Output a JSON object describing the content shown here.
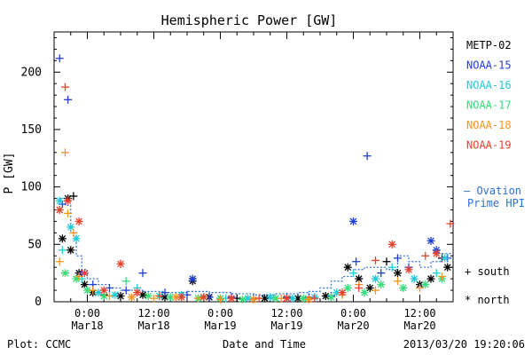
{
  "chart_data": {
    "type": "scatter",
    "title": "Hemispheric Power [GW]",
    "ylabel": "P [GW]",
    "xlabel": "Date and Time",
    "ylim": [
      0,
      235
    ],
    "xlim_hours": [
      -6,
      66
    ],
    "x_ticks": [
      {
        "hour": 0,
        "line1": "0:00",
        "line2": "Mar18"
      },
      {
        "hour": 12,
        "line1": "12:00",
        "line2": "Mar18"
      },
      {
        "hour": 24,
        "line1": "0:00",
        "line2": "Mar19"
      },
      {
        "hour": 36,
        "line1": "12:00",
        "line2": "Mar19"
      },
      {
        "hour": 48,
        "line1": "0:00",
        "line2": "Mar20"
      },
      {
        "hour": 60,
        "line1": "12:00",
        "line2": "Mar20"
      }
    ],
    "y_ticks": [
      "0",
      "50",
      "100",
      "150",
      "200"
    ],
    "y_tick_values": [
      0,
      50,
      100,
      150,
      200
    ],
    "footer_left": "Plot: CCMC",
    "footer_right": "2013/03/20 19:20:06",
    "legend": {
      "satellites": [
        {
          "name": "METP-02",
          "color": "#000000"
        },
        {
          "name": "NOAA-15",
          "color": "#1f3fd6"
        },
        {
          "name": "NOAA-16",
          "color": "#22c8d8"
        },
        {
          "name": "NOAA-17",
          "color": "#33dd77"
        },
        {
          "name": "NOAA-18",
          "color": "#f7941d"
        },
        {
          "name": "NOAA-19",
          "color": "#e8402a"
        }
      ],
      "ovation_label_1": "— Ovation",
      "ovation_label_2": "Prime HPI",
      "ovation_color": "#2a6fd6",
      "south_label": "+ south",
      "north_label": "* north"
    },
    "series": [
      {
        "name": "METP-02",
        "color": "#000000",
        "points": [
          [
            -4.5,
            55,
            "n"
          ],
          [
            -3.5,
            90,
            "n"
          ],
          [
            -3.0,
            45,
            "n"
          ],
          [
            -2.5,
            92,
            "s"
          ],
          [
            -1.5,
            25,
            "n"
          ],
          [
            -0.5,
            15,
            "n"
          ],
          [
            1,
            8,
            "n"
          ],
          [
            3,
            6,
            "s"
          ],
          [
            6,
            5,
            "n"
          ],
          [
            10,
            6,
            "n"
          ],
          [
            14,
            4,
            "n"
          ],
          [
            19,
            18,
            "n"
          ],
          [
            22,
            4,
            "n"
          ],
          [
            27,
            3,
            "s"
          ],
          [
            32,
            3,
            "n"
          ],
          [
            38,
            3,
            "n"
          ],
          [
            43,
            5,
            "n"
          ],
          [
            47,
            30,
            "n"
          ],
          [
            49,
            20,
            "n"
          ],
          [
            51,
            12,
            "n"
          ],
          [
            54,
            35,
            "s"
          ],
          [
            56,
            25,
            "n"
          ],
          [
            60,
            15,
            "n"
          ],
          [
            62,
            20,
            "n"
          ],
          [
            64,
            38,
            "s"
          ],
          [
            65,
            30,
            "n"
          ]
        ]
      },
      {
        "name": "NOAA-15",
        "color": "#1f3fd6",
        "points": [
          [
            -5.0,
            212,
            "s"
          ],
          [
            -3.5,
            176,
            "s"
          ],
          [
            -4.5,
            85,
            "s"
          ],
          [
            -1.0,
            25,
            "s"
          ],
          [
            1,
            15,
            "s"
          ],
          [
            4,
            12,
            "s"
          ],
          [
            7,
            10,
            "s"
          ],
          [
            10,
            25,
            "s"
          ],
          [
            14,
            8,
            "s"
          ],
          [
            18,
            6,
            "s"
          ],
          [
            19,
            20,
            "n"
          ],
          [
            22,
            4,
            "s"
          ],
          [
            26,
            4,
            "s"
          ],
          [
            30,
            3,
            "s"
          ],
          [
            36,
            4,
            "s"
          ],
          [
            40,
            4,
            "s"
          ],
          [
            44,
            5,
            "s"
          ],
          [
            48,
            70,
            "n"
          ],
          [
            48.5,
            35,
            "s"
          ],
          [
            50.5,
            127,
            "s"
          ],
          [
            53,
            25,
            "s"
          ],
          [
            56,
            38,
            "s"
          ],
          [
            58,
            30,
            "s"
          ],
          [
            62,
            53,
            "n"
          ],
          [
            63,
            45,
            "n"
          ],
          [
            65,
            38,
            "s"
          ]
        ]
      },
      {
        "name": "NOAA-16",
        "color": "#22c8d8",
        "points": [
          [
            -5.0,
            88,
            "n"
          ],
          [
            -4.5,
            45,
            "s"
          ],
          [
            -3.0,
            65,
            "n"
          ],
          [
            -2.0,
            55,
            "n"
          ],
          [
            -1.0,
            20,
            "s"
          ],
          [
            2,
            8,
            "n"
          ],
          [
            5,
            6,
            "n"
          ],
          [
            9,
            12,
            "s"
          ],
          [
            13,
            5,
            "n"
          ],
          [
            17,
            6,
            "n"
          ],
          [
            21,
            4,
            "n"
          ],
          [
            25,
            3,
            "s"
          ],
          [
            29,
            3,
            "n"
          ],
          [
            33,
            4,
            "n"
          ],
          [
            37,
            3,
            "n"
          ],
          [
            41,
            4,
            "n"
          ],
          [
            45,
            8,
            "n"
          ],
          [
            48,
            25,
            "s"
          ],
          [
            52,
            20,
            "n"
          ],
          [
            55,
            30,
            "s"
          ],
          [
            59,
            20,
            "n"
          ],
          [
            63,
            25,
            "s"
          ],
          [
            64.5,
            38,
            "n"
          ]
        ]
      },
      {
        "name": "NOAA-17",
        "color": "#33dd77",
        "points": [
          [
            -4.0,
            25,
            "n"
          ],
          [
            -2.0,
            20,
            "n"
          ],
          [
            0,
            10,
            "n"
          ],
          [
            3,
            5,
            "n"
          ],
          [
            7,
            18,
            "s"
          ],
          [
            11,
            5,
            "n"
          ],
          [
            15,
            4,
            "n"
          ],
          [
            20,
            3,
            "n"
          ],
          [
            24,
            3,
            "n"
          ],
          [
            28,
            2,
            "n"
          ],
          [
            34,
            3,
            "n"
          ],
          [
            39,
            3,
            "n"
          ],
          [
            44,
            4,
            "n"
          ],
          [
            47,
            12,
            "n"
          ],
          [
            50,
            8,
            "n"
          ],
          [
            53,
            15,
            "n"
          ],
          [
            57,
            12,
            "n"
          ],
          [
            61,
            15,
            "n"
          ],
          [
            64,
            20,
            "n"
          ]
        ]
      },
      {
        "name": "NOAA-18",
        "color": "#f7941d",
        "points": [
          [
            -5.0,
            35,
            "s"
          ],
          [
            -4.0,
            130,
            "s"
          ],
          [
            -3.5,
            77,
            "s"
          ],
          [
            -2.5,
            60,
            "s"
          ],
          [
            -1.5,
            22,
            "s"
          ],
          [
            1,
            10,
            "s"
          ],
          [
            4,
            5,
            "s"
          ],
          [
            8,
            4,
            "n"
          ],
          [
            12,
            3,
            "s"
          ],
          [
            16,
            4,
            "n"
          ],
          [
            20,
            3,
            "s"
          ],
          [
            24,
            2,
            "s"
          ],
          [
            30,
            2,
            "n"
          ],
          [
            35,
            3,
            "s"
          ],
          [
            40,
            2,
            "n"
          ],
          [
            46,
            6,
            "s"
          ],
          [
            49,
            15,
            "s"
          ],
          [
            52,
            10,
            "s"
          ],
          [
            56,
            18,
            "s"
          ],
          [
            60,
            12,
            "s"
          ],
          [
            64,
            22,
            "s"
          ]
        ]
      },
      {
        "name": "NOAA-19",
        "color": "#e8402a",
        "points": [
          [
            -5.0,
            80,
            "n"
          ],
          [
            -4.0,
            187,
            "s"
          ],
          [
            -3.5,
            88,
            "n"
          ],
          [
            -1.5,
            70,
            "n"
          ],
          [
            -0.5,
            25,
            "n"
          ],
          [
            3,
            10,
            "n"
          ],
          [
            6,
            33,
            "n"
          ],
          [
            9,
            8,
            "n"
          ],
          [
            13,
            5,
            "s"
          ],
          [
            17,
            4,
            "n"
          ],
          [
            21,
            4,
            "n"
          ],
          [
            26,
            3,
            "n"
          ],
          [
            31,
            3,
            "s"
          ],
          [
            36,
            3,
            "n"
          ],
          [
            41,
            3,
            "s"
          ],
          [
            46,
            8,
            "n"
          ],
          [
            49,
            12,
            "s"
          ],
          [
            52,
            36,
            "s"
          ],
          [
            55,
            50,
            "n"
          ],
          [
            58,
            28,
            "n"
          ],
          [
            61,
            40,
            "s"
          ],
          [
            63,
            42,
            "n"
          ],
          [
            65.5,
            68,
            "s"
          ]
        ]
      }
    ],
    "ovation_hpi": [
      [
        -5,
        90
      ],
      [
        -4,
        84
      ],
      [
        -3,
        60
      ],
      [
        -2,
        40
      ],
      [
        -1,
        28
      ],
      [
        0,
        20
      ],
      [
        2,
        15
      ],
      [
        4,
        12
      ],
      [
        6,
        10
      ],
      [
        8,
        10
      ],
      [
        10,
        9
      ],
      [
        12,
        9
      ],
      [
        14,
        8
      ],
      [
        16,
        8
      ],
      [
        18,
        9
      ],
      [
        20,
        9
      ],
      [
        22,
        8
      ],
      [
        24,
        8
      ],
      [
        26,
        7
      ],
      [
        28,
        7
      ],
      [
        30,
        6
      ],
      [
        32,
        6
      ],
      [
        34,
        7
      ],
      [
        36,
        7
      ],
      [
        38,
        8
      ],
      [
        40,
        9
      ],
      [
        42,
        12
      ],
      [
        44,
        18
      ],
      [
        46,
        22
      ],
      [
        48,
        28
      ],
      [
        50,
        30
      ],
      [
        52,
        30
      ],
      [
        54,
        28
      ],
      [
        56,
        40
      ],
      [
        58,
        35
      ],
      [
        60,
        30
      ],
      [
        62,
        35
      ],
      [
        64,
        42
      ],
      [
        65.5,
        40
      ]
    ]
  }
}
